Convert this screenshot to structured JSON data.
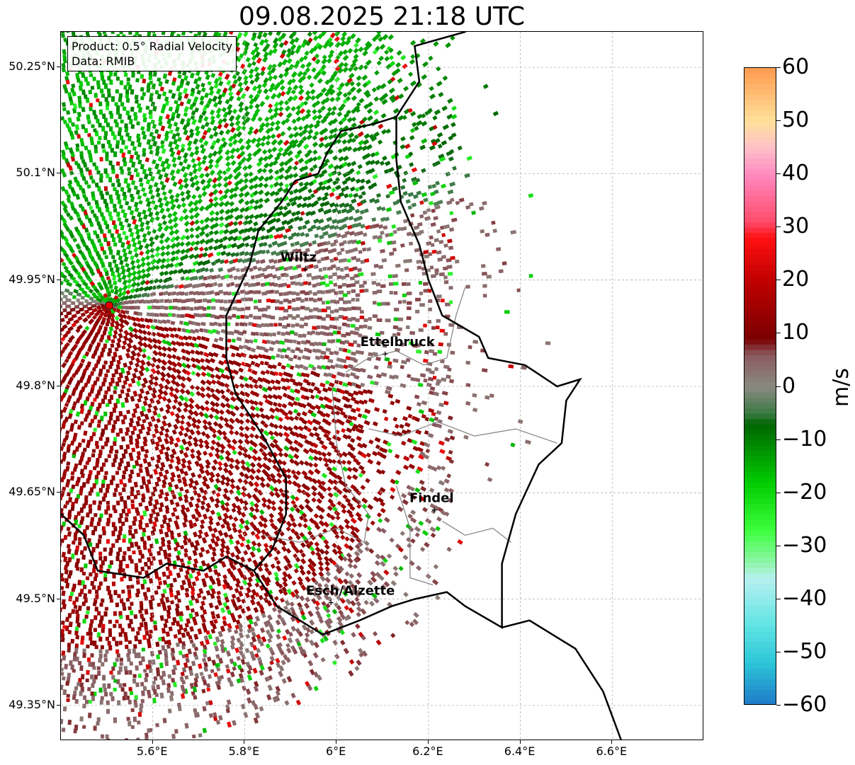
{
  "title": "09.08.2025 21:18 UTC",
  "info": {
    "product": "Product: 0.5° Radial Velocity",
    "source": "Data: RMIB"
  },
  "map": {
    "lon_range": [
      5.4,
      6.8
    ],
    "lat_range": [
      49.3,
      50.3
    ],
    "x_ticks": [
      {
        "value": 5.6,
        "label": "5.6°E"
      },
      {
        "value": 5.8,
        "label": "5.8°E"
      },
      {
        "value": 6.0,
        "label": "6°E"
      },
      {
        "value": 6.2,
        "label": "6.2°E"
      },
      {
        "value": 6.4,
        "label": "6.4°E"
      },
      {
        "value": 6.6,
        "label": "6.6°E"
      }
    ],
    "y_ticks": [
      {
        "value": 50.25,
        "label": "50.25°N"
      },
      {
        "value": 50.1,
        "label": "50.1°N"
      },
      {
        "value": 49.95,
        "label": "49.95°N"
      },
      {
        "value": 49.8,
        "label": "49.8°N"
      },
      {
        "value": 49.65,
        "label": "49.65°N"
      },
      {
        "value": 49.5,
        "label": "49.5°N"
      },
      {
        "value": 49.35,
        "label": "49.35°N"
      }
    ],
    "radar_site": {
      "lon": 5.505,
      "lat": 49.914
    },
    "cities": [
      {
        "name": "Wiltz",
        "lon": 5.93,
        "lat": 49.966
      },
      {
        "name": "Ettelbruck",
        "lon": 6.104,
        "lat": 49.847
      },
      {
        "name": "Findel",
        "lon": 6.211,
        "lat": 49.627
      },
      {
        "name": "Esch/Alzette",
        "lon": 5.986,
        "lat": 49.496
      }
    ],
    "colors": {
      "border": "#000000",
      "canton": "#808080",
      "grid": "#b0b0b0",
      "radar_site": "#e00000"
    }
  },
  "colorbar": {
    "unit": "m/s",
    "min": -60,
    "max": 60,
    "tick_labels": [
      "60",
      "50",
      "40",
      "30",
      "20",
      "10",
      "0",
      "−10",
      "−20",
      "−30",
      "−40",
      "−50",
      "−60"
    ],
    "stops": [
      {
        "value": -60,
        "color": "#1f78c8"
      },
      {
        "value": -52,
        "color": "#2cc6d8"
      },
      {
        "value": -45,
        "color": "#5fe3e3"
      },
      {
        "value": -36,
        "color": "#b7f0f0"
      },
      {
        "value": -33,
        "color": "#8ef5a8"
      },
      {
        "value": -27,
        "color": "#3dff3d"
      },
      {
        "value": -18,
        "color": "#00cc00"
      },
      {
        "value": -7,
        "color": "#006400"
      },
      {
        "value": -5,
        "color": "#3a7a44"
      },
      {
        "value": 0,
        "color": "#8a8a80"
      },
      {
        "value": 6,
        "color": "#8a5a60"
      },
      {
        "value": 9,
        "color": "#7a0000"
      },
      {
        "value": 20,
        "color": "#c00000"
      },
      {
        "value": 28,
        "color": "#ff1010"
      },
      {
        "value": 31,
        "color": "#ff4a6a"
      },
      {
        "value": 40,
        "color": "#ff8ac0"
      },
      {
        "value": 45,
        "color": "#ffc0c8"
      },
      {
        "value": 50,
        "color": "#ffe09a"
      },
      {
        "value": 60,
        "color": "#ff9a50"
      }
    ]
  }
}
